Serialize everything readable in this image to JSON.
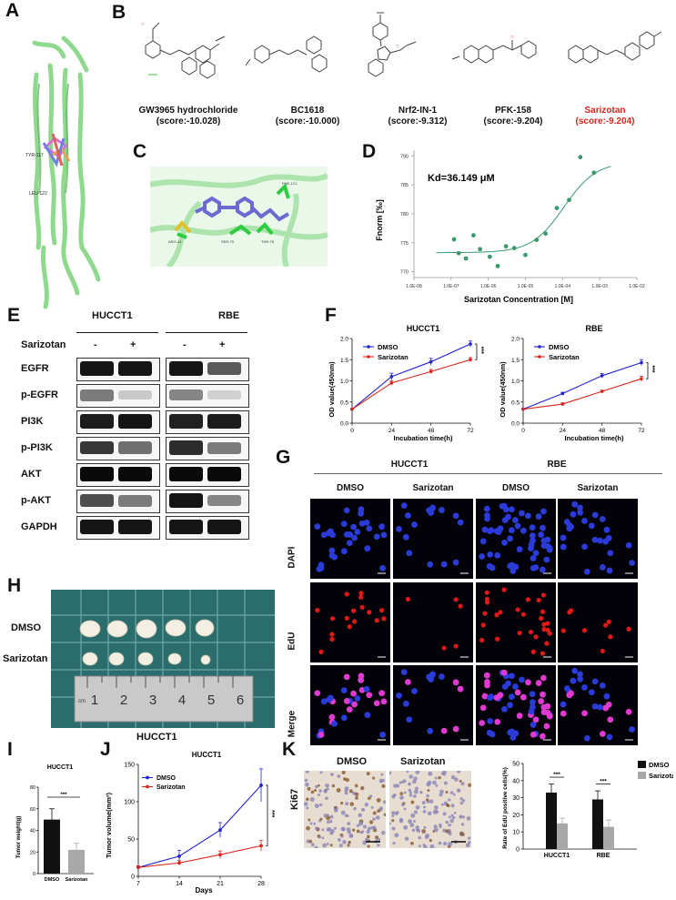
{
  "panels": {
    "A": "A",
    "B": "B",
    "C": "C",
    "D": "D",
    "E": "E",
    "F": "F",
    "G": "G",
    "H": "H",
    "I": "I",
    "J": "J",
    "K": "K"
  },
  "panel_a": {
    "residue_labels": [
      "TYR-117",
      "LEU-122"
    ]
  },
  "panel_b": {
    "compounds": [
      {
        "name": "GW3965 hydrochloride",
        "score": "(score:-10.028)",
        "highlight": false
      },
      {
        "name": "BC1618",
        "score": "(score:-10.000)",
        "highlight": false
      },
      {
        "name": "Nrf2-IN-1",
        "score": "(score:-9.312)",
        "highlight": false
      },
      {
        "name": "PFK-158",
        "score": "(score:-9.204)",
        "highlight": false
      },
      {
        "name": "Sarizotan",
        "score": "(score:-9.204)",
        "highlight": true
      }
    ],
    "colors": {
      "highlight": "#d7261e",
      "normal": "#111111"
    }
  },
  "panel_c": {
    "residue_labels": [
      "PHE-121",
      "ARG-41",
      "SER-75",
      "THR-78"
    ]
  },
  "panel_d": {
    "chart_data": {
      "type": "scatter",
      "annotation": "Kd=36.149 μM",
      "xlabel": "Sarizotan Concentration [M]",
      "ylabel": "Fnorm [‰]",
      "x_scale": "log",
      "x_ticks": [
        "1.0E-08",
        "1.0E-07",
        "1.0E-06",
        "1.0E-05",
        "1.0E-04",
        "1.0E-03",
        "1.0E-02"
      ],
      "y_ticks": [
        "770",
        "775",
        "780",
        "785",
        "790"
      ],
      "ylim": [
        769,
        791
      ],
      "xlim": [
        1e-08,
        0.01
      ],
      "points": [
        {
          "x": 1.2e-07,
          "y": 775.6
        },
        {
          "x": 1.6e-07,
          "y": 773.2
        },
        {
          "x": 2.5e-07,
          "y": 772.3
        },
        {
          "x": 4e-07,
          "y": 776.3
        },
        {
          "x": 6e-07,
          "y": 773.9
        },
        {
          "x": 1.1e-06,
          "y": 772.6
        },
        {
          "x": 1.8e-06,
          "y": 771.0
        },
        {
          "x": 3e-06,
          "y": 774.4
        },
        {
          "x": 5e-06,
          "y": 774.1
        },
        {
          "x": 1e-05,
          "y": 772.9
        },
        {
          "x": 2e-05,
          "y": 775.5
        },
        {
          "x": 3.5e-05,
          "y": 776.6
        },
        {
          "x": 7e-05,
          "y": 781.0
        },
        {
          "x": 0.00015,
          "y": 782.4
        },
        {
          "x": 0.0003,
          "y": 789.8
        },
        {
          "x": 0.0007,
          "y": 787.1
        }
      ],
      "fit": {
        "bottom": 773.3,
        "top": 789.0,
        "kd_molar": 3.6149e-05
      },
      "color": "#3a9a6e"
    }
  },
  "panel_e": {
    "cell_lines": [
      "HUCCT1",
      "RBE"
    ],
    "treatment_label": "Sarizotan",
    "lanes": [
      "-",
      "+",
      "-",
      "+"
    ],
    "proteins": [
      "EGFR",
      "p-EGFR",
      "PI3K",
      "p-PI3K",
      "AKT",
      "p-AKT",
      "GAPDH"
    ],
    "band_levels": [
      [
        0.95,
        0.95,
        0.95,
        0.65
      ],
      [
        0.5,
        0.15,
        0.45,
        0.12
      ],
      [
        0.92,
        0.95,
        0.9,
        0.92
      ],
      [
        0.8,
        0.55,
        0.85,
        0.5
      ],
      [
        1.0,
        1.0,
        1.0,
        1.0
      ],
      [
        0.7,
        0.5,
        0.95,
        0.45
      ],
      [
        0.95,
        0.95,
        0.95,
        0.95
      ]
    ]
  },
  "panel_f": {
    "chart_data": [
      {
        "type": "line",
        "title": "HUCCT1",
        "xlabel": "Incubation time(h)",
        "ylabel": "OD value(450nm)",
        "x": [
          0,
          24,
          48,
          72
        ],
        "ylim": [
          0,
          2.0
        ],
        "y_ticks": [
          "0.0",
          "0.5",
          "1.0",
          "1.5",
          "2.0"
        ],
        "series": [
          {
            "name": "DMSO",
            "values": [
              0.33,
              1.1,
              1.45,
              1.87
            ],
            "err": [
              0.02,
              0.08,
              0.08,
              0.07
            ],
            "color": "#2222cc"
          },
          {
            "name": "Sarizotan",
            "values": [
              0.33,
              0.95,
              1.22,
              1.5
            ],
            "err": [
              0.02,
              0.05,
              0.05,
              0.05
            ],
            "color": "#d7261e"
          }
        ],
        "significance": "***"
      },
      {
        "type": "line",
        "title": "RBE",
        "xlabel": "Incubation time(h)",
        "ylabel": "OD value(450nm)",
        "x": [
          0,
          24,
          48,
          72
        ],
        "ylim": [
          0,
          2.0
        ],
        "y_ticks": [
          "0.0",
          "0.5",
          "1.0",
          "1.5",
          "2.0"
        ],
        "series": [
          {
            "name": "DMSO",
            "values": [
              0.33,
              0.7,
              1.12,
              1.43
            ],
            "err": [
              0.02,
              0.03,
              0.05,
              0.07
            ],
            "color": "#2222cc"
          },
          {
            "name": "Sarizotan",
            "values": [
              0.33,
              0.45,
              0.75,
              1.05
            ],
            "err": [
              0.02,
              0.03,
              0.03,
              0.06
            ],
            "color": "#d7261e"
          }
        ],
        "significance": "***"
      }
    ]
  },
  "panel_g": {
    "cell_lines": [
      "HUCCT1",
      "RBE"
    ],
    "columns": [
      "DMSO",
      "Sarizotan",
      "DMSO",
      "Sarizotan"
    ],
    "rows": [
      "DAPI",
      "EdU",
      "Merge"
    ]
  },
  "panel_h": {
    "rows": [
      "DMSO",
      "Sarizotan"
    ],
    "ruler_numbers": [
      "1",
      "2",
      "3",
      "4",
      "5",
      "6"
    ],
    "ruler_unit": "cm",
    "caption": "HUCCT1"
  },
  "panel_i": {
    "chart_data": {
      "type": "bar",
      "title": "HUCCT1",
      "ylabel": "Tumor weight(g)",
      "categories": [
        "DMSO",
        "Sarizotan"
      ],
      "values": [
        50,
        22
      ],
      "err": [
        10,
        6
      ],
      "ylim": [
        0,
        80
      ],
      "y_ticks": [
        "0",
        "20",
        "40",
        "60",
        "80"
      ],
      "colors": [
        "#111111",
        "#a8a8a8"
      ],
      "significance": "***"
    }
  },
  "panel_j": {
    "chart_data": {
      "type": "line",
      "title": "HUCCT1",
      "xlabel": "Days",
      "ylabel": "Tumor volume(mm³)",
      "x": [
        7,
        14,
        21,
        28
      ],
      "ylim": [
        0,
        150
      ],
      "y_ticks": [
        "0",
        "50",
        "100",
        "150"
      ],
      "series": [
        {
          "name": "DMSO",
          "values": [
            12,
            27,
            62,
            122
          ],
          "err": [
            2,
            8,
            10,
            22
          ],
          "color": "#2222cc"
        },
        {
          "name": "Sarizotan",
          "values": [
            12,
            18,
            29,
            41
          ],
          "err": [
            2,
            3,
            5,
            7
          ],
          "color": "#d7261e"
        }
      ],
      "significance": "***"
    }
  },
  "panel_k": {
    "stain": "Ki67",
    "columns": [
      "DMSO",
      "Sarizotan"
    ],
    "chart_data": {
      "type": "bar",
      "ylabel": "Rate of EdU positive cells(%)",
      "categories": [
        "HUCCT1",
        "RBE"
      ],
      "series": [
        {
          "name": "DMSO",
          "values": [
            33,
            29
          ],
          "err": [
            5,
            5
          ],
          "color": "#111111"
        },
        {
          "name": "Sarizotan",
          "values": [
            15,
            13
          ],
          "err": [
            3,
            4
          ],
          "color": "#a8a8a8"
        }
      ],
      "ylim": [
        0,
        50
      ],
      "y_ticks": [
        "0",
        "10",
        "20",
        "30",
        "40",
        "50"
      ],
      "significance": [
        "***",
        "***"
      ]
    }
  }
}
